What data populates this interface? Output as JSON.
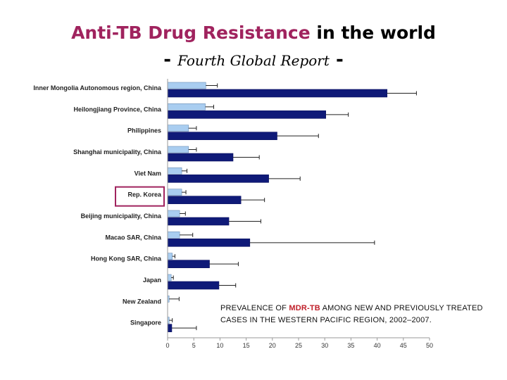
{
  "header": {
    "title_highlight": "Anti-TB Drug Resistance",
    "title_rest": " in the world",
    "subtitle_dash_left": "- ",
    "subtitle": "Fourth Global Report",
    "subtitle_dash_right": " -"
  },
  "annotation": {
    "prefix": "PREVALENCE OF ",
    "highlight": "MDR-TB",
    "suffix": " AMONG NEW AND PREVIOUSLY TREATED CASES IN THE WESTERN PACIFIC REGION, 2002–2007."
  },
  "colors": {
    "new_cases": "#a9cdf0",
    "previously_treated": "#0f1a78",
    "highlight_box": "#a0235e",
    "title_accent": "#a0235e",
    "mdr_text": "#c0202a"
  },
  "chart_data": {
    "type": "bar",
    "orientation": "horizontal",
    "title": "",
    "xlabel": "",
    "ylabel": "",
    "xlim": [
      0,
      50
    ],
    "xticks": [
      0,
      5,
      10,
      15,
      20,
      25,
      30,
      35,
      40,
      45,
      50
    ],
    "highlighted_category": "Rep. Korea",
    "categories": [
      "Inner Mongolia Autonomous region, China",
      "Heilongjiang Province, China",
      "Philippines",
      "Shanghai municipality, China",
      "Viet Nam",
      "Rep. Korea",
      "Beijing municipality, China",
      "Macao SAR, China",
      "Hong Kong SAR, China",
      "Japan",
      "New Zealand",
      "Singapore"
    ],
    "series": [
      {
        "values": [
          7.3,
          7.2,
          4.0,
          4.0,
          2.7,
          2.7,
          2.3,
          2.3,
          0.9,
          0.7,
          0.3,
          0.3
        ],
        "ci_high": [
          9.5,
          8.8,
          5.5,
          5.5,
          3.7,
          3.5,
          3.4,
          4.8,
          1.4,
          1.1,
          2.2,
          0.9
        ]
      },
      {
        "values": [
          41.9,
          30.2,
          20.9,
          12.5,
          19.3,
          14.0,
          11.7,
          15.7,
          8.0,
          9.8,
          0.0,
          0.8
        ],
        "ci_high": [
          47.5,
          34.5,
          28.8,
          17.5,
          25.3,
          18.5,
          17.8,
          39.5,
          13.5,
          13.0,
          0.0,
          5.5
        ]
      }
    ]
  }
}
